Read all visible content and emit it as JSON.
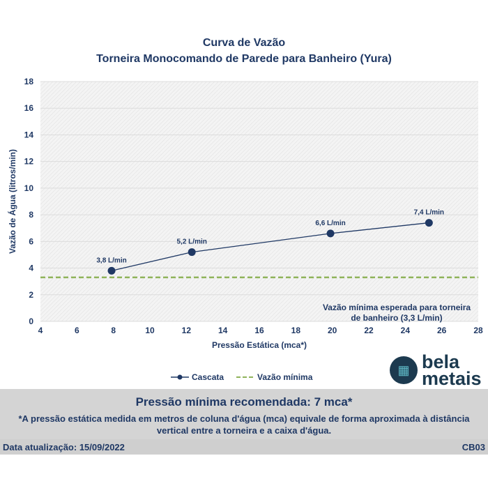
{
  "chart_data": {
    "type": "line",
    "title": "Curva de Vazão",
    "subtitle": "Torneira Monocomando de Parede para Banheiro (Yura)",
    "xlabel": "Pressão Estática (mca*)",
    "ylabel": "Vazão de Água (litros/min)",
    "xlim": [
      4,
      28
    ],
    "ylim": [
      0,
      18
    ],
    "xticks": [
      4,
      6,
      8,
      10,
      12,
      14,
      16,
      18,
      20,
      22,
      24,
      26,
      28
    ],
    "yticks": [
      0,
      2,
      4,
      6,
      8,
      10,
      12,
      14,
      16,
      18
    ],
    "grid": true,
    "series": [
      {
        "name": "Cascata",
        "color": "#1f3864",
        "x": [
          7.9,
          12.3,
          19.9,
          25.3
        ],
        "y": [
          3.8,
          5.2,
          6.6,
          7.4
        ],
        "labels": [
          "3,8 L/min",
          "5,2 L/min",
          "6,6 L/min",
          "7,4 L/min"
        ]
      },
      {
        "name": "Vazão mínima",
        "color": "#8fb35a",
        "style": "dashed",
        "y_const": 3.3
      }
    ],
    "annotation": [
      "Vazão mínima esperada para torneira",
      "de banheiro (3,3 L/min)"
    ],
    "legend_position": "bottom"
  },
  "logo": {
    "line1": "bela",
    "line2": "metais"
  },
  "recommendation": "Pressão mínima recomendada: 7 mca*",
  "note_line1": "*A pressão estática medida em metros de coluna d'água (mca) equivale de forma aproximada à distância",
  "note_line2": "vertical entre a torneira e a caixa d'água.",
  "date_label": "Data atualização:  15/09/2022",
  "code": "CB03"
}
